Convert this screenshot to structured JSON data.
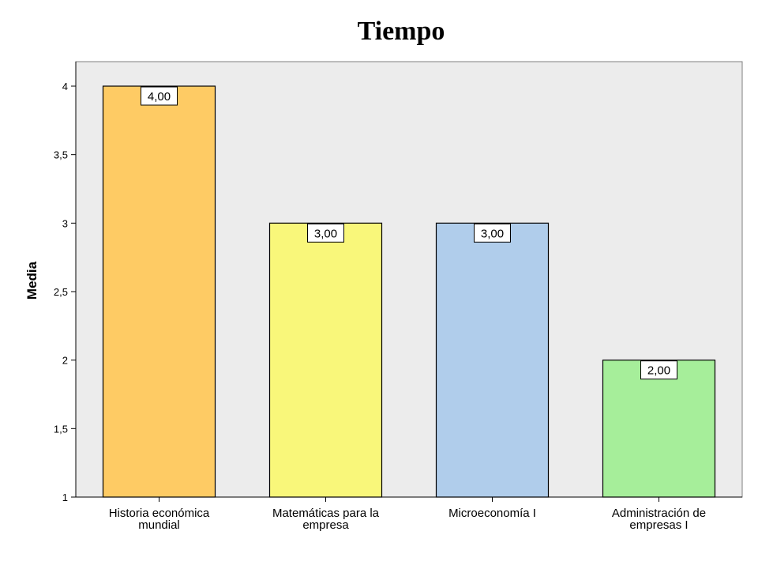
{
  "chart_data": {
    "type": "bar",
    "title": "Tiempo",
    "xlabel": "",
    "ylabel": "Media",
    "ylim": [
      1,
      4.15
    ],
    "yticks": [
      "1",
      "1,5",
      "2",
      "2,5",
      "3",
      "3,5",
      "4"
    ],
    "categories": [
      [
        "Historia económica",
        "mundial"
      ],
      [
        "Matemáticas para la",
        "empresa"
      ],
      [
        "Microeconomía I"
      ],
      [
        "Administración de",
        "empresas I"
      ]
    ],
    "values": [
      4.0,
      3.0,
      3.0,
      2.0
    ],
    "data_labels": [
      "4,00",
      "3,00",
      "3,00",
      "2,00"
    ],
    "colors": [
      "#fecb64",
      "#f9f77a",
      "#b0cdeb",
      "#a6ee9a"
    ],
    "plot_background": "#ececec",
    "grid": false,
    "legend": "none"
  }
}
